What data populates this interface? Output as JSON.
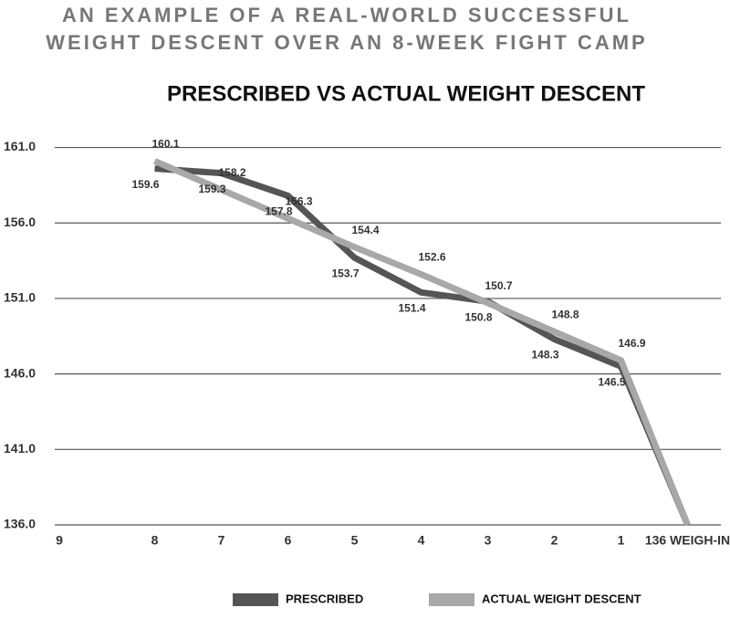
{
  "header": [
    "AN EXAMPLE OF A REAL-WORLD SUCCESSFUL",
    "WEIGHT DESCENT OVER AN 8-WEEK FIGHT CAMP"
  ],
  "chart_data": {
    "type": "line",
    "title": "PRESCRIBED VS ACTUAL WEIGHT DESCENT",
    "categories": [
      "9",
      "8",
      "7",
      "6",
      "5",
      "4",
      "3",
      "2",
      "1",
      "136 WEIGH-IN"
    ],
    "series": [
      {
        "name": "PRESCRIBED",
        "color": "#555555",
        "label_side": "below",
        "values": [
          null,
          159.6,
          159.3,
          157.8,
          153.7,
          151.4,
          150.8,
          148.3,
          146.5,
          136
        ],
        "value_labels": [
          null,
          "159.6",
          "159.3",
          "157.8",
          "153.7",
          "151.4",
          "150.8",
          "148.3",
          "146.5",
          null
        ]
      },
      {
        "name": "ACTUAL WEIGHT DESCENT",
        "color": "#a8a8a8",
        "label_side": "above",
        "values": [
          null,
          160.1,
          158.2,
          156.3,
          154.4,
          152.6,
          150.7,
          148.8,
          146.9,
          136
        ],
        "value_labels": [
          null,
          "160.1",
          "158.2",
          "156.3",
          "154.4",
          "152.6",
          "150.7",
          "148.8",
          "146.9",
          null
        ]
      }
    ],
    "ylim": [
      136,
      162
    ],
    "yticks": [
      {
        "value": 136,
        "label": "136.0"
      },
      {
        "value": 141,
        "label": "141.0"
      },
      {
        "value": 146,
        "label": "146.0"
      },
      {
        "value": 151,
        "label": "151.0"
      },
      {
        "value": 156,
        "label": "156.0"
      },
      {
        "value": 161,
        "label": "161.0"
      }
    ],
    "grid": true,
    "legend": "bottom"
  }
}
